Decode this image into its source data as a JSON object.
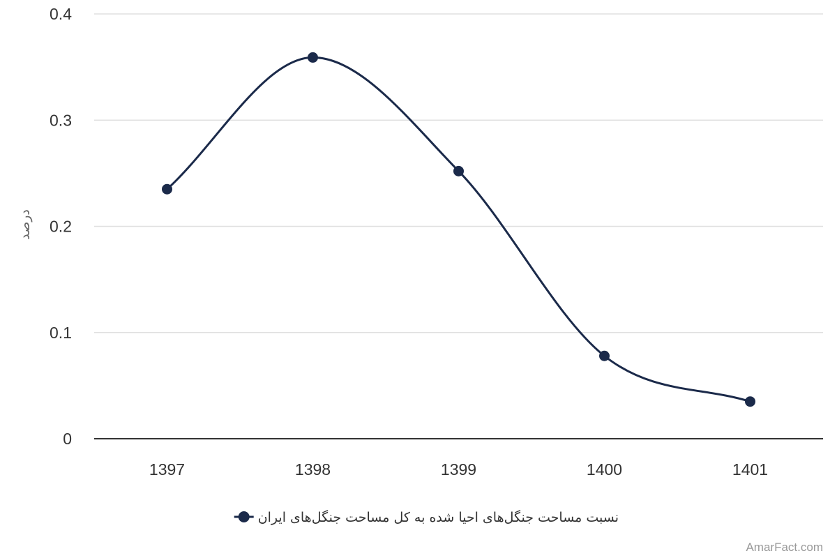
{
  "chart_data": {
    "type": "line",
    "title": "",
    "xlabel": "",
    "ylabel": "درصد",
    "categories": [
      "1397",
      "1398",
      "1399",
      "1400",
      "1401"
    ],
    "series": [
      {
        "name": "نسبت مساحت جنگل‌های احیا شده به کل مساحت جنگل‌های ایران",
        "values": [
          0.235,
          0.359,
          0.252,
          0.078,
          0.035
        ],
        "color": "#1b2a4a"
      }
    ],
    "ylim": [
      0,
      0.4
    ],
    "yticks": [
      "0",
      "0.1",
      "0.2",
      "0.3",
      "0.4"
    ],
    "grid": true,
    "smooth": true,
    "legend_position": "bottom-center"
  },
  "watermark": "AmarFact.com",
  "colors": {
    "series": "#1b2a4a",
    "grid": "#e0e0e0",
    "axis": "#333333"
  }
}
